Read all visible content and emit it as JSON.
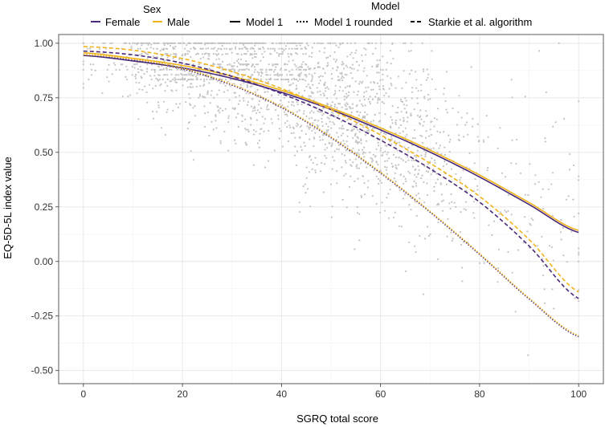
{
  "chart_data": {
    "type": "line",
    "title": "",
    "xlabel": "SGRQ total score",
    "ylabel": "EQ-5D-5L index value",
    "xlim": [
      -5,
      105
    ],
    "ylim": [
      -0.56,
      1.04
    ],
    "x_ticks": [
      0,
      20,
      40,
      60,
      80,
      100
    ],
    "y_ticks": [
      -0.5,
      -0.25,
      0.0,
      0.25,
      0.5,
      0.75,
      1.0
    ],
    "x_tick_labels": [
      "0",
      "20",
      "40",
      "60",
      "80",
      "100"
    ],
    "y_tick_labels": [
      "-0.50",
      "-0.25",
      "0.00",
      "0.25",
      "0.50",
      "0.75",
      "1.00"
    ],
    "grid": true,
    "legend": {
      "position": "top",
      "sex_title": "Sex",
      "sex_entries": [
        "Female",
        "Male"
      ],
      "model_title": "Model",
      "model_entries": [
        "Model 1",
        "Model 1 rounded",
        "Starkie et al. algorithm"
      ]
    },
    "colors": {
      "Female": "#4a2a7a",
      "Male": "#f0b31a",
      "points": "#c4c4c4",
      "legend_line": "#000000"
    },
    "x": [
      0,
      10,
      20,
      30,
      40,
      50,
      60,
      70,
      80,
      90,
      100
    ],
    "series": [
      {
        "name": "Female - Model 1",
        "sex": "Female",
        "model": "Model 1",
        "style": "solid",
        "values": [
          0.944,
          0.919,
          0.887,
          0.839,
          0.775,
          0.696,
          0.603,
          0.501,
          0.387,
          0.261,
          0.133
        ]
      },
      {
        "name": "Male - Model 1",
        "sex": "Male",
        "model": "Model 1",
        "style": "solid",
        "values": [
          0.956,
          0.931,
          0.898,
          0.849,
          0.784,
          0.704,
          0.612,
          0.51,
          0.396,
          0.27,
          0.142
        ]
      },
      {
        "name": "Female - Model 1 rounded",
        "sex": "Female",
        "model": "Model 1 rounded",
        "style": "dotted",
        "values": [
          0.944,
          0.923,
          0.882,
          0.808,
          0.705,
          0.567,
          0.405,
          0.226,
          0.032,
          -0.172,
          -0.345
        ]
      },
      {
        "name": "Male - Model 1 rounded",
        "sex": "Male",
        "model": "Model 1 rounded",
        "style": "dotted",
        "values": [
          0.948,
          0.927,
          0.886,
          0.812,
          0.709,
          0.571,
          0.409,
          0.23,
          0.036,
          -0.168,
          -0.34
        ]
      },
      {
        "name": "Female - Starkie et al. algorithm",
        "sex": "Female",
        "model": "Starkie et al. algorithm",
        "style": "dashed",
        "values": [
          0.964,
          0.947,
          0.909,
          0.848,
          0.769,
          0.672,
          0.556,
          0.425,
          0.272,
          0.071,
          -0.17
        ]
      },
      {
        "name": "Male - Starkie et al. algorithm",
        "sex": "Male",
        "model": "Starkie et al. algorithm",
        "style": "dashed",
        "values": [
          0.985,
          0.968,
          0.93,
          0.87,
          0.792,
          0.695,
          0.58,
          0.45,
          0.298,
          0.101,
          -0.14
        ]
      }
    ],
    "scatter": {
      "description_count": 2200,
      "seed": 20231
    }
  }
}
